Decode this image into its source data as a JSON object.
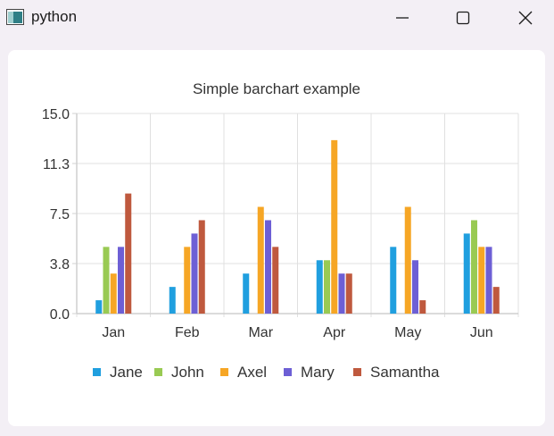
{
  "window": {
    "title": "python",
    "app_icon": "python-window-icon",
    "controls": [
      {
        "name": "minimize",
        "icon": "minimize-icon"
      },
      {
        "name": "maximize",
        "icon": "maximize-icon"
      },
      {
        "name": "close",
        "icon": "close-icon"
      }
    ]
  },
  "chart_data": {
    "type": "bar",
    "title": "Simple barchart example",
    "categories": [
      "Jan",
      "Feb",
      "Mar",
      "Apr",
      "May",
      "Jun"
    ],
    "yticks": [
      "0.0",
      "3.8",
      "7.5",
      "11.3",
      "15.0"
    ],
    "ylim": [
      0,
      15
    ],
    "grid": true,
    "legend_position": "bottom",
    "series": [
      {
        "name": "Jane",
        "color": "#209fdf",
        "values": [
          1,
          2,
          3,
          4,
          5,
          6
        ]
      },
      {
        "name": "John",
        "color": "#99ca53",
        "values": [
          5,
          0,
          0,
          4,
          0,
          7
        ]
      },
      {
        "name": "Axel",
        "color": "#f6a625",
        "values": [
          3,
          5,
          8,
          13,
          8,
          5
        ]
      },
      {
        "name": "Mary",
        "color": "#6d5fd5",
        "values": [
          5,
          6,
          7,
          3,
          4,
          5
        ]
      },
      {
        "name": "Samantha",
        "color": "#bf593e",
        "values": [
          9,
          7,
          5,
          3,
          1,
          2
        ]
      }
    ]
  }
}
